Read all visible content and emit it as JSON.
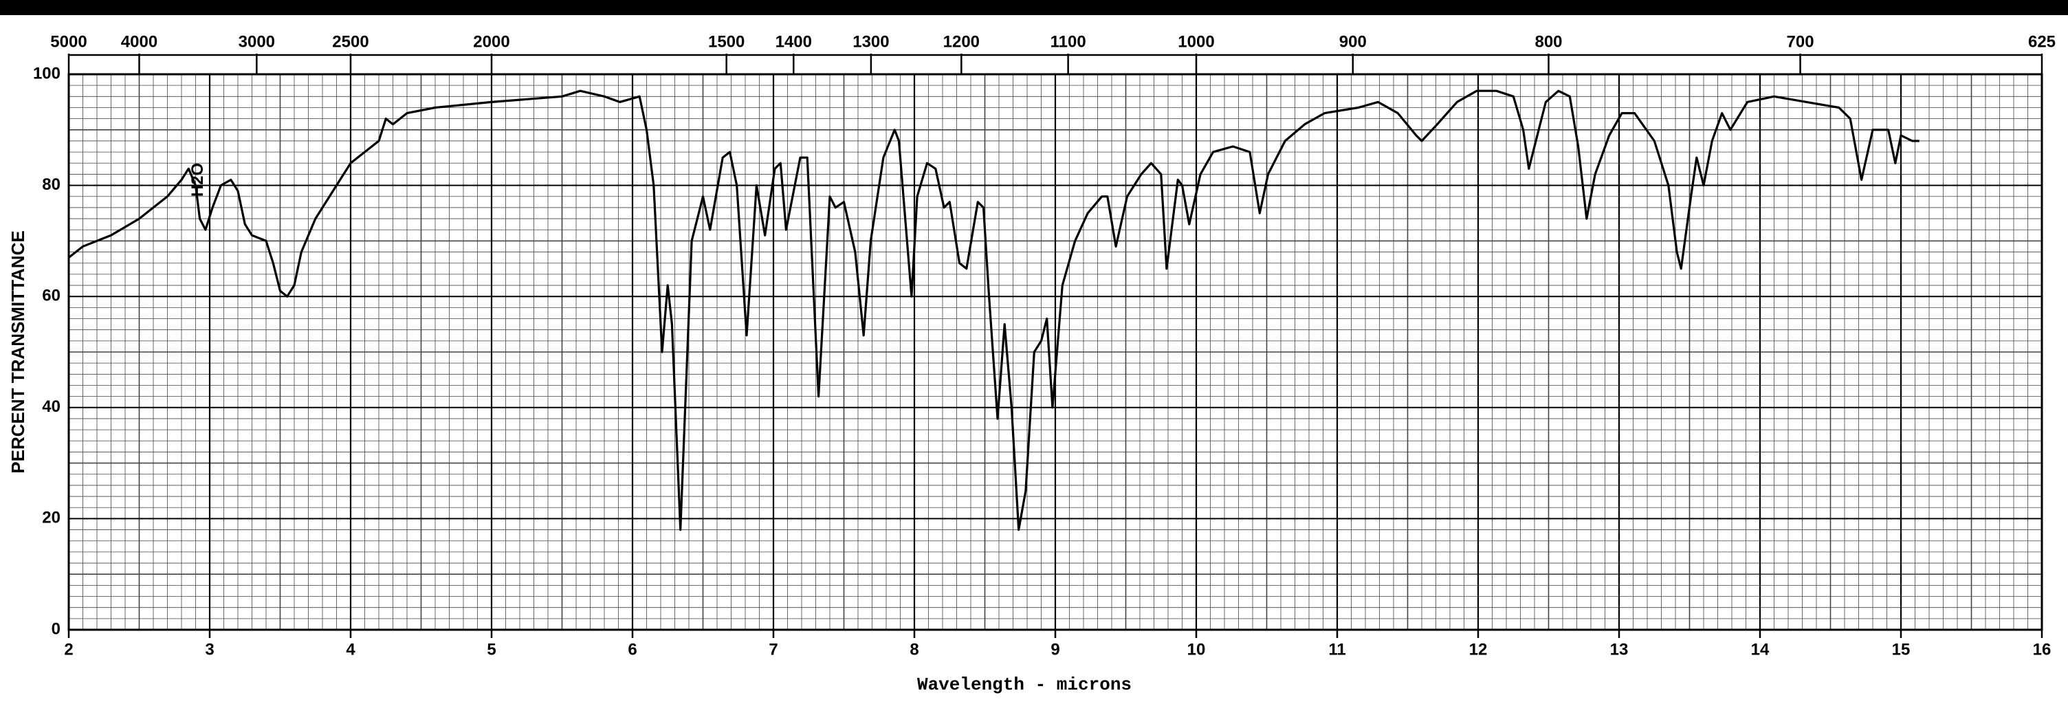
{
  "chart_data": {
    "type": "line",
    "xlabel": "Wavelength - microns",
    "ylabel": "PERCENT TRANSMITTANCE",
    "xlim": [
      2,
      16
    ],
    "xticks": [
      2,
      3,
      4,
      5,
      6,
      7,
      8,
      9,
      10,
      11,
      12,
      13,
      14,
      15,
      16
    ],
    "x2ticks": [
      5000,
      4000,
      3000,
      2500,
      2000,
      1500,
      1400,
      1300,
      1200,
      1100,
      1000,
      900,
      800,
      700,
      625
    ],
    "ylim": [
      0,
      100
    ],
    "yticks": [
      0,
      20,
      40,
      60,
      80,
      100
    ],
    "grid": true,
    "color": "#000000",
    "annotations": [
      {
        "text": "H2O",
        "x": 2.92,
        "y": 81
      }
    ],
    "x": [
      2.0,
      2.1,
      2.3,
      2.5,
      2.6,
      2.7,
      2.8,
      2.85,
      2.9,
      2.93,
      2.97,
      3.02,
      3.08,
      3.15,
      3.2,
      3.25,
      3.3,
      3.4,
      3.45,
      3.5,
      3.55,
      3.6,
      3.65,
      3.75,
      3.9,
      4.0,
      4.2,
      4.25,
      4.3,
      4.4,
      4.6,
      5.0,
      5.5,
      5.63,
      5.8,
      5.91,
      6.05,
      6.1,
      6.15,
      6.21,
      6.25,
      6.28,
      6.34,
      6.42,
      6.47,
      6.5,
      6.55,
      6.64,
      6.69,
      6.74,
      6.81,
      6.88,
      6.94,
      7.01,
      7.05,
      7.09,
      7.19,
      7.24,
      7.32,
      7.4,
      7.44,
      7.5,
      7.58,
      7.64,
      7.69,
      7.78,
      7.86,
      7.89,
      7.98,
      8.02,
      8.09,
      8.15,
      8.21,
      8.25,
      8.32,
      8.37,
      8.45,
      8.49,
      8.53,
      8.59,
      8.64,
      8.69,
      8.74,
      8.79,
      8.85,
      8.9,
      8.94,
      8.98,
      9.05,
      9.14,
      9.23,
      9.33,
      9.37,
      9.43,
      9.51,
      9.61,
      9.68,
      9.75,
      9.79,
      9.87,
      9.9,
      9.95,
      10.03,
      10.12,
      10.26,
      10.38,
      10.45,
      10.51,
      10.63,
      10.77,
      10.91,
      11.15,
      11.29,
      11.43,
      11.56,
      11.6,
      11.71,
      11.85,
      11.99,
      12.13,
      12.25,
      12.32,
      12.36,
      12.41,
      12.48,
      12.57,
      12.65,
      12.71,
      12.77,
      12.83,
      12.93,
      13.02,
      13.11,
      13.25,
      13.35,
      13.41,
      13.44,
      13.51,
      13.55,
      13.6,
      13.66,
      13.73,
      13.79,
      13.91,
      14.1,
      14.33,
      14.56,
      14.64,
      14.72,
      14.8,
      14.91,
      14.96,
      15.0,
      15.08,
      15.13
    ],
    "values": [
      67,
      69,
      71,
      74,
      76,
      78,
      81,
      83,
      80,
      74,
      72,
      76,
      80,
      81,
      79,
      73,
      71,
      70,
      66,
      61,
      60,
      62,
      68,
      74,
      80,
      84,
      88,
      92,
      91,
      93,
      94,
      95,
      96,
      97,
      96,
      95,
      96,
      90,
      80,
      50,
      62,
      55,
      18,
      70,
      75,
      78,
      72,
      85,
      86,
      80,
      53,
      80,
      71,
      83,
      84,
      72,
      85,
      85,
      42,
      78,
      76,
      77,
      68,
      53,
      70,
      85,
      90,
      88,
      60,
      78,
      84,
      83,
      76,
      77,
      66,
      65,
      77,
      76,
      60,
      38,
      55,
      40,
      18,
      25,
      50,
      52,
      56,
      40,
      62,
      70,
      75,
      78,
      78,
      69,
      78,
      82,
      84,
      82,
      65,
      81,
      80,
      73,
      82,
      86,
      87,
      86,
      75,
      82,
      88,
      91,
      93,
      94,
      95,
      93,
      89,
      88,
      91,
      95,
      97,
      97,
      96,
      90,
      83,
      88,
      95,
      97,
      96,
      87,
      74,
      82,
      89,
      93,
      93,
      88,
      80,
      68,
      65,
      78,
      85,
      80,
      88,
      93,
      90,
      95,
      96,
      95,
      94,
      92,
      81,
      90,
      90,
      84,
      89,
      88,
      88
    ]
  }
}
